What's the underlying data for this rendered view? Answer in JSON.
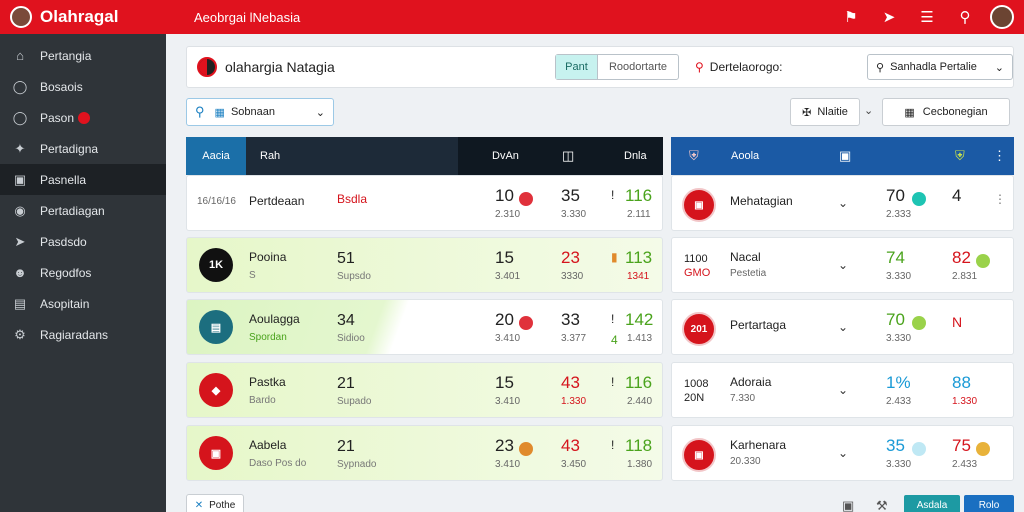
{
  "app": {
    "brand": "Olahragal",
    "title": "Aeobrgai lNebasia"
  },
  "topbar_icons": [
    "flag-icon",
    "bolt-icon",
    "sliders-icon",
    "search-icon",
    "user-avatar"
  ],
  "sidebar": {
    "items": [
      {
        "label": "Pertangia",
        "icon": "home-icon"
      },
      {
        "label": "Bosaois",
        "icon": "chat-icon"
      },
      {
        "label": "Pason",
        "icon": "bell-icon",
        "badge": true
      },
      {
        "label": "Pertadigna",
        "icon": "star-icon"
      },
      {
        "label": "Pasnella",
        "icon": "table-icon",
        "active": true
      },
      {
        "label": "Pertadiagan",
        "icon": "circle-icon"
      },
      {
        "label": "Pasdsdo",
        "icon": "send-icon"
      },
      {
        "label": "Regodfos",
        "icon": "users-icon"
      },
      {
        "label": "Asopitain",
        "icon": "list-icon"
      },
      {
        "label": "Ragiaradans",
        "icon": "gear-icon"
      }
    ]
  },
  "header": {
    "title": "olahargia Natagia",
    "seg_active": "Pant",
    "seg_other": "Roodortarte",
    "search_text": "Dertelaorogo:",
    "dropdown_value": "Sanhadla Pertalie"
  },
  "filter": {
    "search_value": "Sobnaan",
    "btn1": "Nlaitie",
    "btn2": "Cecbonegian"
  },
  "left_table": {
    "headers": [
      "Aacia",
      "Rah",
      "DvAn",
      "Dnla"
    ],
    "rows": [
      {
        "style": "white",
        "code": "16/16/16",
        "name": "Pertdeaan",
        "v1": "Bsdla",
        "v2": "10",
        "v2s": "2.310",
        "dot": "#e0313b",
        "v3": "35",
        "v3s": "3.330",
        "tick": "!",
        "v4": "116",
        "v4s": "2.111"
      },
      {
        "style": "green",
        "icon": "1K",
        "icon_bg": "#111111",
        "name": "Pooina",
        "sub": "S",
        "v1": "51",
        "v1s": "Supsdo",
        "v2": "15",
        "v2s": "3.401",
        "v3": "23",
        "v3s": "3330",
        "v3color": "#d5141c",
        "tick": "▮",
        "v4": "113",
        "v4s": "1341"
      },
      {
        "style": "mixed",
        "icon": "▤",
        "icon_bg": "#1c6e7f",
        "name": "Aoulagga",
        "sub": "Spordan",
        "v1": "34",
        "v1s": "Sidioo",
        "v2": "20",
        "v2s": "3.410",
        "dot": "#e0313b",
        "v3": "33",
        "v3s": "3.377",
        "tick": "!",
        "tick2": "4",
        "v4": "142",
        "v4s": "1.413"
      },
      {
        "style": "green",
        "icon": "◆",
        "icon_bg": "#d5141c",
        "name": "Pastka",
        "sub": "Bardo",
        "v1": "21",
        "v1s": "Supado",
        "v2": "15",
        "v2s": "3.410",
        "v3": "43",
        "v3s": "1.330",
        "v3color": "#d5141c",
        "tick": "!",
        "v4": "116",
        "v4s": "2.440"
      },
      {
        "style": "green",
        "icon": "▣",
        "icon_bg": "#d5141c",
        "name": "Aabela",
        "sub": "Daso Pos do",
        "v1": "21",
        "v1s": "Sypnado",
        "v2": "23",
        "v2s": "3.410",
        "dot": "#e08a2c",
        "v3": "43",
        "v3s": "3.450",
        "v3color": "#d5141c",
        "tick": "!",
        "v4": "118",
        "v4s": "1.380"
      }
    ]
  },
  "right_table": {
    "headers": [
      "Aoola"
    ],
    "rows": [
      {
        "icon": "▣",
        "name": "Mehatagian",
        "v1": "70",
        "v1s": "2.333",
        "dot": "#1ec4b3",
        "v2": "4",
        "kebab": "⋮"
      },
      {
        "code1": "1100",
        "code2": "GMO",
        "name": "Nacal",
        "sub": "Pestetia",
        "v1": "74",
        "v1s": "3.330",
        "v1color": "#4aa31c",
        "v2": "82",
        "v2s": "2.831",
        "v2color": "#d5141c",
        "dot2": "#9ad24a"
      },
      {
        "icon": "201",
        "name": "Pertartaga",
        "v1": "70",
        "v1s": "3.330",
        "v1color": "#4aa31c",
        "dot": "#9ad24a",
        "v2": "N",
        "v2color": "#d5141c"
      },
      {
        "code1": "1008",
        "code2": "20N",
        "name": "Adoraia",
        "sub": "7.330",
        "v1": "1%",
        "v1s": "2.433",
        "v1color": "#1a9ad6",
        "v2": "88",
        "v2s": "1.330",
        "v2color": "#1a9ad6"
      },
      {
        "icon": "▣",
        "name": "Karhenara",
        "sub": "20.330",
        "v1": "35",
        "v1s": "3.330",
        "v1color": "#1a9ad6",
        "dot": "#bfe8f4",
        "v2": "75",
        "v2s": "2.433",
        "v2color": "#d5141c",
        "dot2": "#e8b23a"
      }
    ]
  },
  "bottom": {
    "left_btn": "Pothe",
    "act1": "Asdala",
    "act2": "Rolo"
  },
  "colors": {
    "brand_red": "#e0121e",
    "sidebar_bg": "#2f3439",
    "table_head": "#1d2a38",
    "teal": "#1d9aa3",
    "blue": "#1a6fc1"
  }
}
